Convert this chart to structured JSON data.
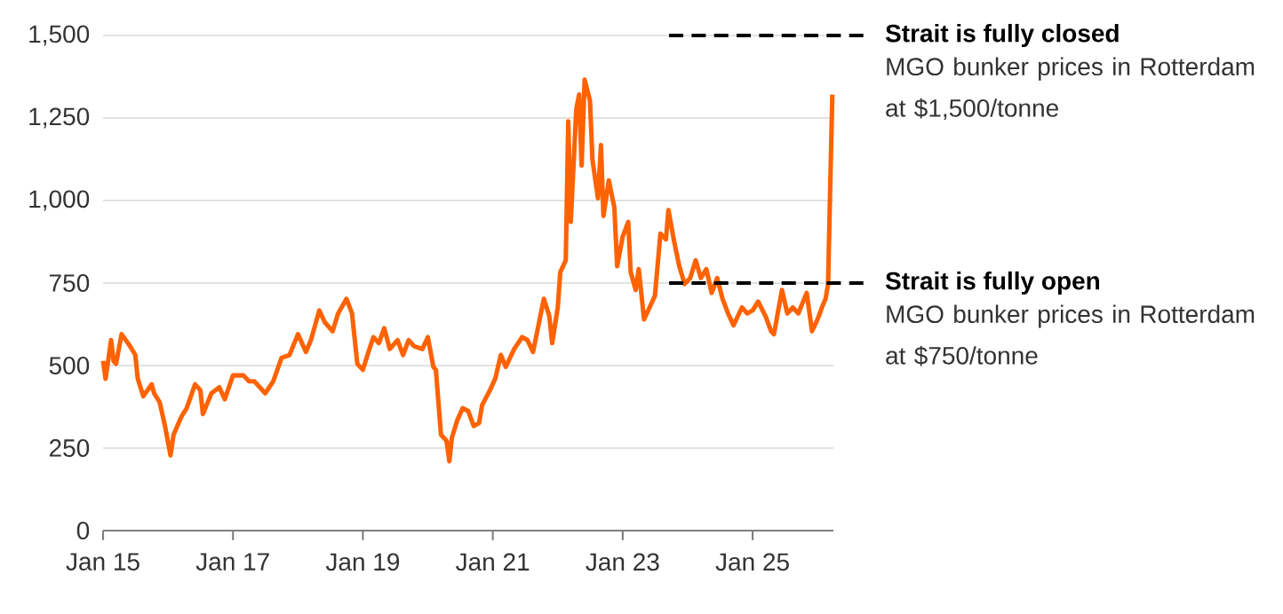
{
  "chart_data": {
    "type": "line",
    "grid": "y",
    "x": [
      "2015-01-01",
      "2015-01-15",
      "2015-02-15",
      "2015-03-01",
      "2015-03-15",
      "2015-04-15",
      "2015-06-01",
      "2015-07-01",
      "2015-07-15",
      "2015-08-15",
      "2015-10-01",
      "2015-10-15",
      "2015-11-15",
      "2015-12-15",
      "2016-01-15",
      "2016-02-01",
      "2016-03-15",
      "2016-04-15",
      "2016-06-01",
      "2016-07-01",
      "2016-07-15",
      "2016-09-01",
      "2016-10-15",
      "2016-11-15",
      "2017-01-01",
      "2017-03-01",
      "2017-04-01",
      "2017-05-01",
      "2017-06-01",
      "2017-07-01",
      "2017-08-15",
      "2017-10-01",
      "2017-11-15",
      "2018-01-01",
      "2018-02-15",
      "2018-03-15",
      "2018-05-01",
      "2018-06-01",
      "2018-07-15",
      "2018-08-15",
      "2018-10-01",
      "2018-11-01",
      "2018-12-01",
      "2019-01-01",
      "2019-02-01",
      "2019-03-01",
      "2019-04-01",
      "2019-05-01",
      "2019-06-01",
      "2019-07-15",
      "2019-08-15",
      "2019-09-15",
      "2019-10-15",
      "2019-12-01",
      "2020-01-01",
      "2020-02-01",
      "2020-02-15",
      "2020-03-15",
      "2020-04-15",
      "2020-05-01",
      "2020-05-15",
      "2020-06-15",
      "2020-07-15",
      "2020-08-15",
      "2020-09-15",
      "2020-10-15",
      "2020-11-01",
      "2020-12-15",
      "2021-01-15",
      "2021-02-15",
      "2021-03-15",
      "2021-05-01",
      "2021-06-15",
      "2021-07-15",
      "2021-08-15",
      "2021-09-15",
      "2021-10-15",
      "2021-11-15",
      "2021-12-01",
      "2022-01-01",
      "2022-01-15",
      "2022-02-15",
      "2022-03-01",
      "2022-03-15",
      "2022-04-15",
      "2022-05-01",
      "2022-05-15",
      "2022-06-01",
      "2022-07-01",
      "2022-07-15",
      "2022-08-15",
      "2022-09-01",
      "2022-09-15",
      "2022-10-15",
      "2022-11-15",
      "2022-12-01",
      "2023-01-01",
      "2023-02-01",
      "2023-02-15",
      "2023-03-15",
      "2023-04-01",
      "2023-05-01",
      "2023-06-01",
      "2023-07-01",
      "2023-08-01",
      "2023-09-01",
      "2023-09-15",
      "2023-10-15",
      "2023-11-15",
      "2023-12-15",
      "2024-01-15",
      "2024-02-15",
      "2024-03-15",
      "2024-04-15",
      "2024-05-15",
      "2024-06-15",
      "2024-07-15",
      "2024-08-15",
      "2024-09-15",
      "2024-11-01",
      "2024-12-01",
      "2025-01-01",
      "2025-02-01",
      "2025-03-15",
      "2025-04-15",
      "2025-05-01",
      "2025-06-15",
      "2025-07-15",
      "2025-08-15",
      "2025-09-15",
      "2025-11-01",
      "2025-12-01",
      "2026-01-01",
      "2026-02-01",
      "2026-02-15",
      "2026-03-01",
      "2026-03-12",
      "2026-03-25"
    ],
    "series": [
      {
        "color": "#ff6200",
        "values": [
          514,
          460,
          577,
          514,
          505,
          595,
          559,
          532,
          460,
          407,
          443,
          416,
          389,
          317,
          228,
          290,
          344,
          371,
          443,
          425,
          353,
          416,
          434,
          398,
          470,
          470,
          452,
          452,
          434,
          416,
          452,
          523,
          532,
          595,
          541,
          577,
          667,
          631,
          604,
          658,
          702,
          658,
          505,
          487,
          541,
          586,
          568,
          613,
          550,
          577,
          532,
          577,
          559,
          550,
          586,
          496,
          487,
          290,
          272,
          210,
          281,
          335,
          371,
          362,
          317,
          326,
          380,
          425,
          461,
          532,
          496,
          550,
          586,
          577,
          541,
          622,
          702,
          649,
          568,
          676,
          783,
          819,
          1240,
          935,
          1276,
          1321,
          1106,
          1366,
          1303,
          1124,
          1007,
          1168,
          953,
          1061,
          980,
          801,
          891,
          935,
          783,
          729,
          792,
          640,
          676,
          711,
          900,
          882,
          971,
          882,
          801,
          747,
          765,
          819,
          765,
          792,
          720,
          765,
          702,
          658,
          622,
          676,
          658,
          667,
          694,
          649,
          604,
          595,
          729,
          658,
          676,
          658,
          720,
          604,
          640,
          685,
          702,
          747,
          1016,
          1321
        ]
      }
    ],
    "xlim": [
      "2015-01-01",
      "2026-03-31"
    ],
    "xticks": [
      {
        "value": "2015-01-01",
        "label": "Jan 15"
      },
      {
        "value": "2017-01-01",
        "label": "Jan 17"
      },
      {
        "value": "2019-01-01",
        "label": "Jan 19"
      },
      {
        "value": "2021-01-01",
        "label": "Jan 21"
      },
      {
        "value": "2023-01-01",
        "label": "Jan 23"
      },
      {
        "value": "2025-01-01",
        "label": "Jan 25"
      }
    ],
    "ylim": [
      0,
      1500
    ],
    "yticks": [
      0,
      250,
      500,
      750,
      {
        "value": 1000,
        "label": "1,000"
      },
      {
        "value": 1250,
        "label": "1,250"
      },
      {
        "value": 1500,
        "label": "1,500"
      }
    ],
    "ref_lines": [
      {
        "axis": "y",
        "value": 1500,
        "label": "Strait is fully closed",
        "color": "#000000",
        "line_style": "dashed"
      },
      {
        "axis": "y",
        "value": 750,
        "label": "Strait is fully open",
        "color": "#000000",
        "line_style": "dashed"
      }
    ],
    "annotations": [
      "MGO bunker prices in Rotterdam at $1,500/tonne",
      "MGO bunker prices in Rotterdam at $750/tonne"
    ]
  }
}
